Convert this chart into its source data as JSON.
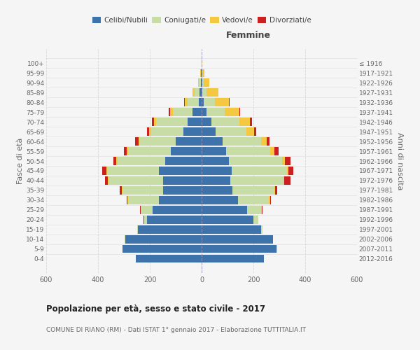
{
  "age_groups": [
    "0-4",
    "5-9",
    "10-14",
    "15-19",
    "20-24",
    "25-29",
    "30-34",
    "35-39",
    "40-44",
    "45-49",
    "50-54",
    "55-59",
    "60-64",
    "65-69",
    "70-74",
    "75-79",
    "80-84",
    "85-89",
    "90-94",
    "95-99",
    "100+"
  ],
  "birth_years": [
    "2012-2016",
    "2007-2011",
    "2002-2006",
    "1997-2001",
    "1992-1996",
    "1987-1991",
    "1982-1986",
    "1977-1981",
    "1972-1976",
    "1967-1971",
    "1962-1966",
    "1957-1961",
    "1952-1956",
    "1947-1951",
    "1942-1946",
    "1937-1941",
    "1932-1936",
    "1927-1931",
    "1922-1926",
    "1917-1921",
    "≤ 1916"
  ],
  "male": {
    "celibi": [
      255,
      305,
      295,
      245,
      210,
      190,
      165,
      150,
      150,
      165,
      140,
      120,
      100,
      70,
      55,
      35,
      12,
      8,
      4,
      2,
      1
    ],
    "coniugati": [
      0,
      1,
      1,
      4,
      12,
      45,
      120,
      155,
      210,
      200,
      185,
      165,
      140,
      125,
      120,
      75,
      42,
      18,
      6,
      2,
      0
    ],
    "vedovi": [
      0,
      0,
      0,
      0,
      0,
      1,
      1,
      2,
      2,
      2,
      4,
      4,
      4,
      7,
      8,
      12,
      12,
      8,
      4,
      2,
      0
    ],
    "divorziati": [
      0,
      0,
      0,
      0,
      1,
      2,
      4,
      8,
      12,
      18,
      12,
      12,
      12,
      10,
      8,
      4,
      2,
      1,
      0,
      0,
      0
    ]
  },
  "female": {
    "nubili": [
      240,
      290,
      275,
      230,
      200,
      175,
      140,
      120,
      110,
      115,
      105,
      95,
      80,
      55,
      38,
      20,
      8,
      4,
      2,
      1,
      0
    ],
    "coniugate": [
      0,
      1,
      1,
      6,
      18,
      55,
      120,
      160,
      205,
      215,
      205,
      170,
      150,
      118,
      108,
      70,
      42,
      16,
      6,
      2,
      0
    ],
    "vedove": [
      0,
      0,
      0,
      0,
      1,
      2,
      4,
      4,
      5,
      5,
      12,
      16,
      20,
      30,
      40,
      55,
      55,
      45,
      22,
      8,
      3
    ],
    "divorziate": [
      0,
      0,
      0,
      0,
      1,
      2,
      4,
      8,
      22,
      18,
      22,
      16,
      12,
      8,
      8,
      4,
      2,
      1,
      0,
      0,
      0
    ]
  },
  "colors": {
    "celibi_nubili": "#3d72aa",
    "coniugati": "#c8dca5",
    "vedovi": "#f5c842",
    "divorziati": "#cc2020"
  },
  "xlim": 600,
  "title": "Popolazione per età, sesso e stato civile - 2017",
  "subtitle": "COMUNE DI RIANO (RM) - Dati ISTAT 1° gennaio 2017 - Elaborazione TUTTITALIA.IT",
  "xlabel_right": "Femmine",
  "ylabel_left": "Fasce di età",
  "ylabel_right": "Anni di nascita",
  "bg_color": "#f5f5f5",
  "grid_color": "#cccccc"
}
